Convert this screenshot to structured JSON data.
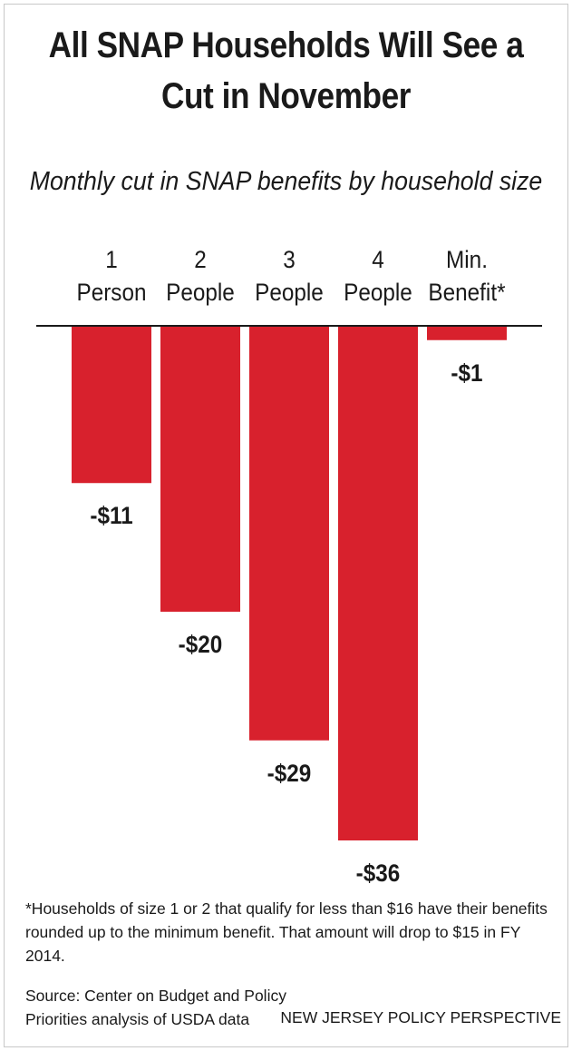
{
  "chart_data": {
    "type": "bar",
    "title": "All SNAP Households Will See a Cut in November",
    "subtitle": "Monthly cut in SNAP benefits by household size",
    "categories": [
      [
        "1",
        "Person"
      ],
      [
        "2",
        "People"
      ],
      [
        "3",
        "People"
      ],
      [
        "4",
        "People"
      ],
      [
        "Min.",
        "Benefit*"
      ]
    ],
    "values": [
      -11,
      -20,
      -29,
      -36,
      -1
    ],
    "value_labels": [
      "-$11",
      "-$20",
      "-$29",
      "-$36",
      "-$1"
    ],
    "ylim": [
      -36,
      0
    ],
    "bar_color": "#d8212d",
    "grid": false,
    "legend": "none"
  },
  "footnote": "*Households of size 1 or 2 that qualify for less than $16 have their benefits\nrounded up to the minimum benefit. That amount will drop to $15 in FY 2014.",
  "source": "Source: Center on Budget and Policy\nPriorities analysis of USDA data",
  "brand": "NEW JERSEY POLICY PERSPECTIVE"
}
